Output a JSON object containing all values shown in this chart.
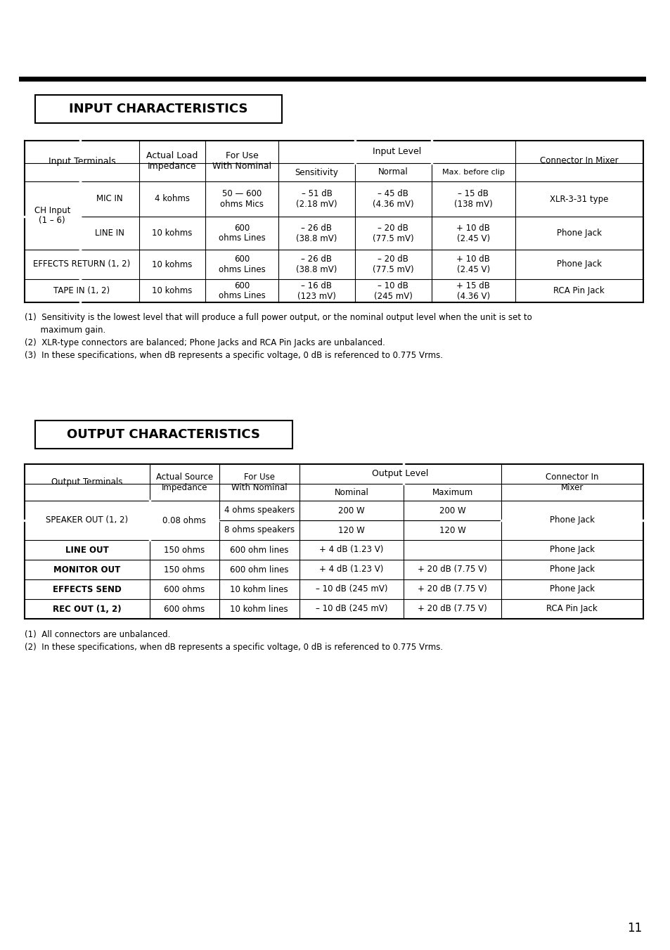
{
  "bg_color": "#ffffff",
  "page_number": "11",
  "input_section": {
    "title": "INPUT CHARACTERISTICS",
    "notes": [
      "(1)  Sensitivity is the lowest level that will produce a full power output, or the nominal output level when the unit is set to",
      "      maximum gain.",
      "(2)  XLR-type connectors are balanced; Phone Jacks and RCA Pin Jacks are unbalanced.",
      "(3)  In these specifications, when dB represents a specific voltage, 0 dB is referenced to 0.775 Vrms."
    ]
  },
  "output_section": {
    "title": "OUTPUT CHARACTERISTICS",
    "notes": [
      "(1)  All connectors are unbalanced.",
      "(2)  In these specifications, when dB represents a specific voltage, 0 dB is referenced to 0.775 Vrms."
    ]
  }
}
